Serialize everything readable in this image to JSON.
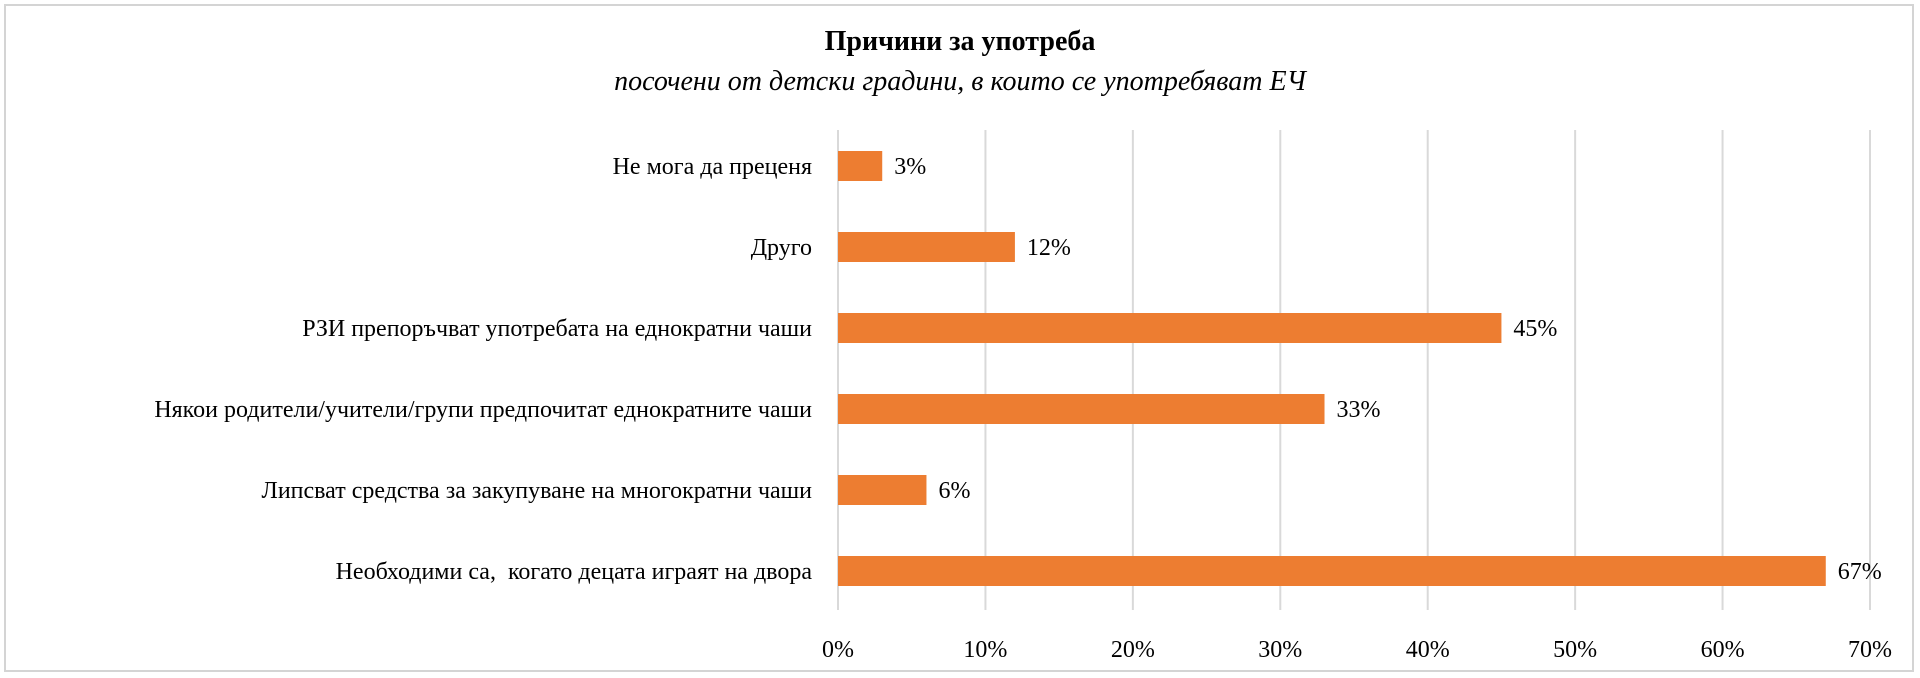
{
  "chart_data": {
    "type": "bar",
    "orientation": "horizontal",
    "title": "Причини за употреба",
    "subtitle": "посочени от детски градини, в които се употребяват ЕЧ",
    "categories": [
      "Не мога да преценя",
      "Друго",
      "РЗИ препоръчват употребата на еднократни чаши",
      "Някои родители/учители/групи предпочитат еднократните чаши",
      "Липсват средства за закупуване на многократни чаши",
      "Необходими са,  когато децата играят на двора"
    ],
    "values": [
      3,
      12,
      45,
      33,
      6,
      67
    ],
    "data_labels": [
      "3%",
      "12%",
      "45%",
      "33%",
      "6%",
      "67%"
    ],
    "xlim": [
      0,
      70
    ],
    "xticks": [
      "0%",
      "10%",
      "20%",
      "30%",
      "40%",
      "50%",
      "60%",
      "70%"
    ],
    "grid": true,
    "legend": "none",
    "bar_color": "#ed7d31"
  }
}
